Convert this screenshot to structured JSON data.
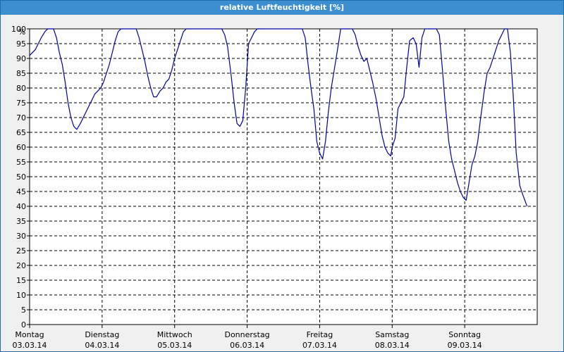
{
  "window": {
    "title": "relative Luftfeuchtigkeit [%]"
  },
  "chart_data": {
    "type": "line",
    "title": "relative Luftfeuchtigkeit [%]",
    "xlabel": "",
    "ylabel": "%",
    "ylim": [
      0,
      100
    ],
    "yticks": [
      0,
      5,
      10,
      15,
      20,
      25,
      30,
      35,
      40,
      45,
      50,
      55,
      60,
      65,
      70,
      75,
      80,
      85,
      90,
      95,
      100
    ],
    "grid": true,
    "xlim": [
      0,
      7
    ],
    "day_labels": [
      {
        "day": "Montag",
        "date": "03.03.14"
      },
      {
        "day": "Dienstag",
        "date": "04.03.14"
      },
      {
        "day": "Mittwoch",
        "date": "05.03.14"
      },
      {
        "day": "Donnerstag",
        "date": "06.03.14"
      },
      {
        "day": "Freitag",
        "date": "07.03.14"
      },
      {
        "day": "Samstag",
        "date": "08.03.14"
      },
      {
        "day": "Sonntag",
        "date": "09.03.14"
      }
    ],
    "line_color": "#0000aa",
    "series": [
      {
        "x": [
          0.0,
          0.04,
          0.08,
          0.12,
          0.16,
          0.21,
          0.25,
          0.29,
          0.33,
          0.37,
          0.41,
          0.45,
          0.49,
          0.53,
          0.57,
          0.61,
          0.65,
          0.7,
          0.74,
          0.78,
          0.82,
          0.86,
          0.9,
          0.94,
          0.98,
          1.02,
          1.06,
          1.1,
          1.14,
          1.18,
          1.22,
          1.26,
          1.31,
          1.35,
          1.39,
          1.43,
          1.47,
          1.51,
          1.55,
          1.59,
          1.63,
          1.67,
          1.71,
          1.75,
          1.8,
          1.84,
          1.88,
          1.92,
          1.96,
          2.0,
          2.04,
          2.08,
          2.12,
          2.16,
          2.2,
          2.24,
          2.29,
          2.33,
          2.37,
          2.41,
          2.45,
          2.49,
          2.53,
          2.57,
          2.61,
          2.65,
          2.69,
          2.73,
          2.78,
          2.82,
          2.86,
          2.9,
          2.94,
          2.98,
          3.02,
          3.06,
          3.1,
          3.14,
          3.18,
          3.22,
          3.27,
          3.31,
          3.35,
          3.39,
          3.43,
          3.47,
          3.51,
          3.55,
          3.59,
          3.63,
          3.67,
          3.71,
          3.76,
          3.8,
          3.84,
          3.88,
          3.92,
          3.96,
          4.0,
          4.04,
          4.08,
          4.12,
          4.16,
          4.2,
          4.24,
          4.29,
          4.33,
          4.37,
          4.41,
          4.45,
          4.49,
          4.53,
          4.57,
          4.61,
          4.65,
          4.69,
          4.73,
          4.78,
          4.82,
          4.86,
          4.9,
          4.94,
          4.98,
          5.0,
          5.04,
          5.08,
          5.12,
          5.16,
          5.2,
          5.24,
          5.29,
          5.33,
          5.37,
          5.41,
          5.45,
          5.49,
          5.53,
          5.57,
          5.61,
          5.65,
          5.69,
          5.73,
          5.78,
          5.82,
          5.86,
          5.9,
          5.94,
          5.98,
          6.02,
          6.06,
          6.1,
          6.14,
          6.18,
          6.22,
          6.27,
          6.31,
          6.35,
          6.39,
          6.43,
          6.47,
          6.51,
          6.55,
          6.59,
          6.63,
          6.67,
          6.71,
          6.76,
          6.8,
          6.86
        ],
        "values": [
          91,
          92,
          93,
          95,
          97,
          99,
          100,
          100,
          100,
          97,
          92,
          88,
          82,
          75,
          70,
          67,
          66,
          68,
          70,
          72,
          74,
          76,
          78,
          79,
          80,
          82,
          85,
          88,
          92,
          96,
          99,
          100,
          100,
          100,
          100,
          100,
          100,
          97,
          93,
          89,
          84,
          80,
          77,
          77,
          79,
          80,
          82,
          83,
          86,
          90,
          93,
          96,
          99,
          100,
          100,
          100,
          100,
          100,
          100,
          100,
          100,
          100,
          100,
          100,
          100,
          100,
          98,
          94,
          84,
          75,
          68,
          67,
          69,
          80,
          95,
          97,
          99,
          100,
          100,
          100,
          100,
          100,
          100,
          100,
          100,
          100,
          100,
          100,
          100,
          100,
          100,
          100,
          100,
          97,
          88,
          80,
          73,
          62,
          58,
          56,
          62,
          72,
          80,
          86,
          92,
          100,
          100,
          100,
          100,
          100,
          98,
          94,
          91,
          89,
          90,
          86,
          82,
          76,
          70,
          64,
          60,
          58,
          57,
          60,
          63,
          73,
          75,
          77,
          87,
          96,
          97,
          95,
          87,
          97,
          100,
          100,
          100,
          100,
          100,
          98,
          87,
          75,
          62,
          56,
          52,
          48,
          45,
          43,
          42,
          48,
          54,
          57,
          62,
          70,
          79,
          85,
          87,
          90,
          93,
          96,
          98,
          100,
          100,
          92,
          77,
          58,
          47,
          44,
          40
        ]
      }
    ]
  }
}
